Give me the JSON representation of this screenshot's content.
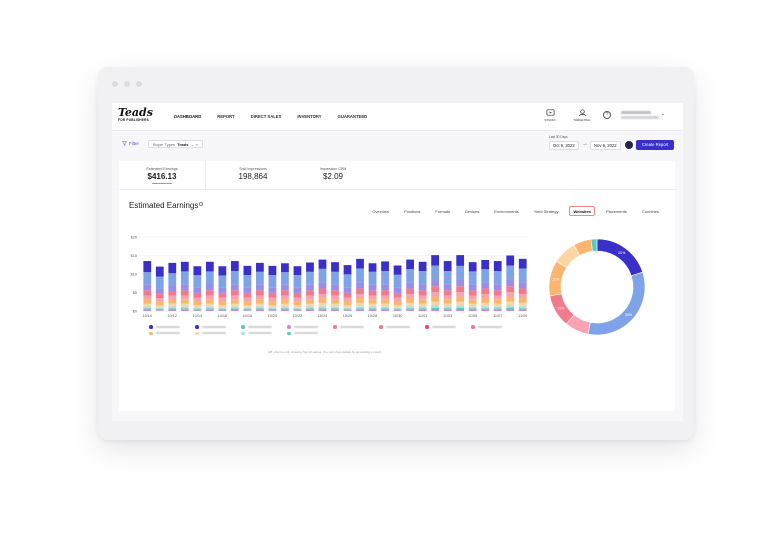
{
  "window": {
    "controls": [
      "close",
      "minimize",
      "maximize"
    ]
  },
  "brand": {
    "logo": "Teads",
    "logo_sub": "FOR PUBLISHERS"
  },
  "nav": {
    "items": [
      {
        "label": "DASHBOARD",
        "active": true
      },
      {
        "label": "REPORT",
        "active": false
      },
      {
        "label": "DIRECT SALES",
        "active": false
      },
      {
        "label": "INVENTORY",
        "active": false
      },
      {
        "label": "GUARANTEED",
        "active": false
      }
    ],
    "studio_label": "STUDIO",
    "targeting_label": "TARGETING",
    "help_icon": "question-circle-icon"
  },
  "filterbar": {
    "filter_label": "Filter",
    "chip_key": "Buyer Types",
    "chip_value": "Teads",
    "date_label": "Last 30 Days",
    "date_from": "Oct 9, 2022",
    "date_to": "Nov 9, 2022",
    "create_report_label": "Create Report"
  },
  "metrics": [
    {
      "label": "Estimated Earnings",
      "value": "$416.13",
      "active": true
    },
    {
      "label": "Sold Impressions",
      "value": "198,864",
      "active": false
    },
    {
      "label": "Impression CPM",
      "value": "$2.09",
      "active": false
    }
  ],
  "section": {
    "title": "Estimated Earnings"
  },
  "tabs": [
    {
      "label": "Overview",
      "active": false
    },
    {
      "label": "Positions",
      "active": false
    },
    {
      "label": "Formats",
      "active": false
    },
    {
      "label": "Devices",
      "active": false
    },
    {
      "label": "Environments",
      "active": false
    },
    {
      "label": "Yield Strategy",
      "active": false
    },
    {
      "label": "Websites",
      "active": true
    },
    {
      "label": "Placements",
      "active": false
    },
    {
      "label": "Countries",
      "active": false
    }
  ],
  "footnote": "NB: chart is only showing Top 10 values. You can show details by generating a report.",
  "colors": {
    "accent": "#3b2fc9",
    "series": [
      "#3b2fc9",
      "#7fa3e8",
      "#9a8ee8",
      "#f27a8c",
      "#f9a3b0",
      "#fbb56f",
      "#fcd5a3",
      "#a9e2dc",
      "#5cc8c0",
      "#c18ed6"
    ]
  },
  "chart_data": [
    {
      "type": "bar",
      "stacked": true,
      "ylim": [
        0,
        20
      ],
      "y_ticks": [
        "$0",
        "$5",
        "$10",
        "$15",
        "$20"
      ],
      "categories": [
        "10/10",
        "10/11",
        "10/12",
        "10/13",
        "10/14",
        "10/15",
        "10/16",
        "10/17",
        "10/18",
        "10/19",
        "10/20",
        "10/21",
        "10/22",
        "10/23",
        "10/24",
        "10/25",
        "10/26",
        "10/27",
        "10/28",
        "10/29",
        "10/30",
        "10/31",
        "11/01",
        "11/02",
        "11/03",
        "11/04",
        "11/05",
        "11/06",
        "11/07",
        "11/08",
        "11/09"
      ],
      "x_tick_labels": [
        "10/10",
        "10/12",
        "10/14",
        "10/16",
        "10/18",
        "10/20",
        "10/22",
        "10/24",
        "10/26",
        "10/28",
        "10/30",
        "11/01",
        "11/03",
        "11/05",
        "11/07",
        "11/09"
      ],
      "series": [
        {
          "values": [
            3.0,
            2.7,
            2.8,
            2.6,
            2.4,
            2.6,
            2.5,
            2.7,
            2.5,
            2.4,
            2.5,
            2.4,
            2.4,
            2.5,
            2.5,
            2.6,
            2.5,
            2.6,
            2.3,
            2.6,
            2.5,
            2.6,
            2.5,
            2.8,
            2.7,
            2.9,
            2.5,
            2.5,
            2.7,
            2.7,
            2.6
          ]
        },
        {
          "values": [
            3.3,
            3.2,
            3.3,
            3.5,
            3.3,
            3.4,
            3.2,
            3.6,
            3.3,
            3.4,
            3.3,
            3.3,
            3.3,
            3.4,
            3.6,
            3.4,
            3.5,
            3.7,
            3.4,
            3.6,
            3.4,
            3.5,
            3.6,
            3.8,
            3.6,
            3.7,
            3.5,
            3.5,
            3.6,
            3.8,
            3.7
          ]
        },
        {
          "values": [
            1.6,
            1.4,
            1.5,
            1.6,
            1.5,
            1.7,
            1.5,
            1.6,
            1.5,
            1.6,
            1.5,
            1.6,
            1.5,
            1.6,
            1.7,
            1.6,
            1.5,
            1.7,
            1.6,
            1.6,
            1.5,
            1.7,
            1.6,
            1.8,
            1.6,
            1.8,
            1.6,
            1.7,
            1.6,
            1.8,
            1.7
          ]
        },
        {
          "values": [
            1.4,
            1.2,
            1.3,
            1.4,
            1.3,
            1.4,
            1.3,
            1.4,
            1.3,
            1.4,
            1.3,
            1.4,
            1.3,
            1.4,
            1.5,
            1.4,
            1.3,
            1.5,
            1.4,
            1.4,
            1.3,
            1.5,
            1.4,
            1.6,
            1.4,
            1.6,
            1.4,
            1.5,
            1.4,
            1.6,
            1.5
          ]
        },
        {
          "values": [
            1.0,
            0.9,
            1.0,
            1.0,
            0.9,
            1.0,
            0.9,
            1.0,
            0.9,
            1.0,
            0.9,
            1.0,
            0.9,
            1.0,
            1.1,
            1.0,
            0.9,
            1.1,
            1.0,
            1.0,
            0.9,
            1.1,
            1.0,
            1.2,
            1.0,
            1.2,
            1.0,
            1.1,
            1.0,
            1.2,
            1.1
          ]
        },
        {
          "values": [
            1.2,
            1.0,
            1.1,
            1.2,
            1.1,
            1.2,
            1.1,
            1.2,
            1.1,
            1.2,
            1.1,
            1.2,
            1.1,
            1.2,
            1.3,
            1.2,
            1.1,
            1.3,
            1.2,
            1.2,
            1.1,
            1.3,
            1.2,
            1.4,
            1.2,
            1.4,
            1.2,
            1.3,
            1.2,
            1.4,
            1.3
          ]
        },
        {
          "values": [
            0.8,
            0.7,
            0.8,
            0.8,
            0.7,
            0.8,
            0.7,
            0.8,
            0.7,
            0.8,
            0.7,
            0.8,
            0.7,
            0.8,
            0.9,
            0.8,
            0.7,
            0.9,
            0.8,
            0.8,
            0.7,
            0.9,
            0.8,
            1.0,
            0.8,
            1.0,
            0.8,
            0.9,
            0.8,
            1.0,
            0.9
          ]
        },
        {
          "values": [
            0.5,
            0.4,
            0.5,
            0.5,
            0.4,
            0.5,
            0.4,
            0.5,
            0.4,
            0.5,
            0.4,
            0.5,
            0.4,
            0.5,
            0.6,
            0.5,
            0.4,
            0.6,
            0.5,
            0.5,
            0.4,
            0.6,
            0.5,
            0.6,
            0.5,
            0.6,
            0.5,
            0.6,
            0.5,
            0.6,
            0.6
          ]
        },
        {
          "values": [
            0.4,
            0.3,
            0.4,
            0.4,
            0.3,
            0.4,
            0.3,
            0.4,
            0.3,
            0.4,
            0.3,
            0.4,
            0.3,
            0.4,
            0.4,
            0.4,
            0.3,
            0.4,
            0.4,
            0.4,
            0.3,
            0.4,
            0.4,
            0.5,
            0.4,
            0.5,
            0.4,
            0.4,
            0.4,
            0.5,
            0.4
          ]
        },
        {
          "values": [
            0.3,
            0.2,
            0.3,
            0.3,
            0.2,
            0.3,
            0.2,
            0.3,
            0.2,
            0.3,
            0.2,
            0.3,
            0.2,
            0.3,
            0.3,
            0.3,
            0.2,
            0.3,
            0.3,
            0.3,
            0.2,
            0.3,
            0.3,
            0.4,
            0.3,
            0.4,
            0.3,
            0.3,
            0.3,
            0.4,
            0.3
          ]
        }
      ]
    },
    {
      "type": "pie",
      "donut": true,
      "slices": [
        {
          "value": 20,
          "label": "20%",
          "color": "#3b2fc9"
        },
        {
          "value": 33,
          "label": "33%",
          "color": "#7fa3e8"
        },
        {
          "value": 8,
          "label": "",
          "color": "#f9a3b0"
        },
        {
          "value": 11,
          "label": "11%",
          "color": "#f27a8c"
        },
        {
          "value": 12,
          "label": "12%",
          "color": "#fbb56f"
        },
        {
          "value": 8,
          "label": "",
          "color": "#fcd5a3"
        },
        {
          "value": 6,
          "label": "",
          "color": "#fbb56f"
        },
        {
          "value": 2,
          "label": "",
          "color": "#5cc8c0"
        }
      ]
    }
  ]
}
